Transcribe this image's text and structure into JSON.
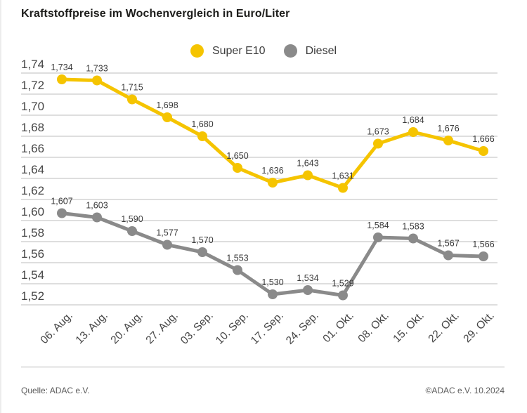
{
  "title": "Kraftstoffpreise im Wochenvergleich in Euro/Liter",
  "legend": {
    "items": [
      {
        "label": "Super E10",
        "color": "#f5c400"
      },
      {
        "label": "Diesel",
        "color": "#8a8a8a"
      }
    ]
  },
  "footer": {
    "source": "Quelle: ADAC e.V.",
    "copyright": "©ADAC e.V. 10.2024"
  },
  "colors": {
    "super_e10": "#f5c400",
    "diesel": "#8a8a8a",
    "gridline": "#c9c9c9",
    "text_dark": "#1d1d1b",
    "text_axis": "#454545"
  },
  "chart_data": {
    "type": "line",
    "title": "Kraftstoffpreise im Wochenvergleich in Euro/Liter",
    "xlabel": "",
    "ylabel": "Euro/Liter",
    "ylim": [
      1.52,
      1.74
    ],
    "grid": true,
    "legend_position": "top-center",
    "categories": [
      "06. Aug.",
      "13. Aug.",
      "20. Aug.",
      "27. Aug.",
      "03. Sep.",
      "10. Sep.",
      "17. Sep.",
      "24. Sep.",
      "01. Okt.",
      "08. Okt.",
      "15. Okt.",
      "22. Okt.",
      "29. Okt."
    ],
    "y_ticks": [
      "1,74",
      "1,72",
      "1,70",
      "1,68",
      "1,66",
      "1,64",
      "1,62",
      "1,60",
      "1,58",
      "1,56",
      "1,54",
      "1,52"
    ],
    "y_tick_values": [
      1.74,
      1.72,
      1.7,
      1.68,
      1.66,
      1.64,
      1.62,
      1.6,
      1.58,
      1.56,
      1.54,
      1.52
    ],
    "series": [
      {
        "name": "Super E10",
        "color": "#f5c400",
        "values": [
          1.734,
          1.733,
          1.715,
          1.698,
          1.68,
          1.65,
          1.636,
          1.643,
          1.631,
          1.673,
          1.684,
          1.676,
          1.666
        ],
        "labels": [
          "1,734",
          "1,733",
          "1,715",
          "1,698",
          "1,680",
          "1,650",
          "1,636",
          "1,643",
          "1,631",
          "1,673",
          "1,684",
          "1,676",
          "1,666"
        ]
      },
      {
        "name": "Diesel",
        "color": "#8a8a8a",
        "values": [
          1.607,
          1.603,
          1.59,
          1.577,
          1.57,
          1.553,
          1.53,
          1.534,
          1.529,
          1.584,
          1.583,
          1.567,
          1.566
        ],
        "labels": [
          "1,607",
          "1,603",
          "1,590",
          "1,577",
          "1,570",
          "1,553",
          "1,530",
          "1,534",
          "1,529",
          "1,584",
          "1,583",
          "1,567",
          "1,566"
        ]
      }
    ]
  }
}
